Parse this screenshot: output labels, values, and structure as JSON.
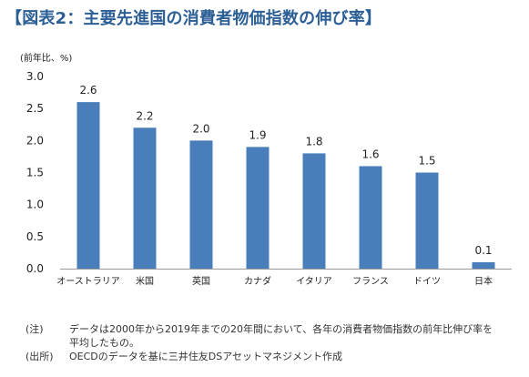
{
  "title": "【図表2：主要先進国の消費者物価指数の伸び率】",
  "chart_data": {
    "type": "bar",
    "unit_label": "(前年比、%)",
    "categories": [
      "オーストラリア",
      "米国",
      "英国",
      "カナダ",
      "イタリア",
      "フランス",
      "ドイツ",
      "日本"
    ],
    "values": [
      2.6,
      2.2,
      2.0,
      1.9,
      1.8,
      1.6,
      1.5,
      0.1
    ],
    "data_labels": [
      "2.6",
      "2.2",
      "2.0",
      "1.9",
      "1.8",
      "1.6",
      "1.5",
      "0.1"
    ],
    "ylim": [
      0,
      3.0
    ],
    "yticks": [
      "0.0",
      "0.5",
      "1.0",
      "1.5",
      "2.0",
      "2.5",
      "3.0"
    ],
    "grid": false,
    "colors": {
      "bar": "#4a7ebb"
    }
  },
  "notes": [
    {
      "label": "(注)",
      "text": "データは2000年から2019年までの20年間において、各年の消費者物価指数の前年比伸び率を平均したもの。"
    },
    {
      "label": "(出所)",
      "text": "OECDのデータを基に三井住友DSアセットマネジメント作成"
    }
  ]
}
